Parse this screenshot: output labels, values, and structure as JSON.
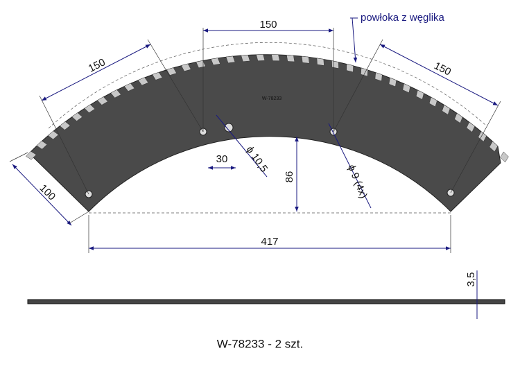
{
  "part_label": "W-78233",
  "dimensions": {
    "top_width": "150",
    "left_width": "150",
    "right_width": "150",
    "left_end": "100",
    "hole_offset": "30",
    "center_hole": "ϕ 10,5",
    "height": "86",
    "holes": "ϕ 9 (4x)",
    "chord": "417",
    "thickness": "3,5"
  },
  "coating_note": "powłoka z węglika",
  "caption": "W-78233 - 2 szt."
}
